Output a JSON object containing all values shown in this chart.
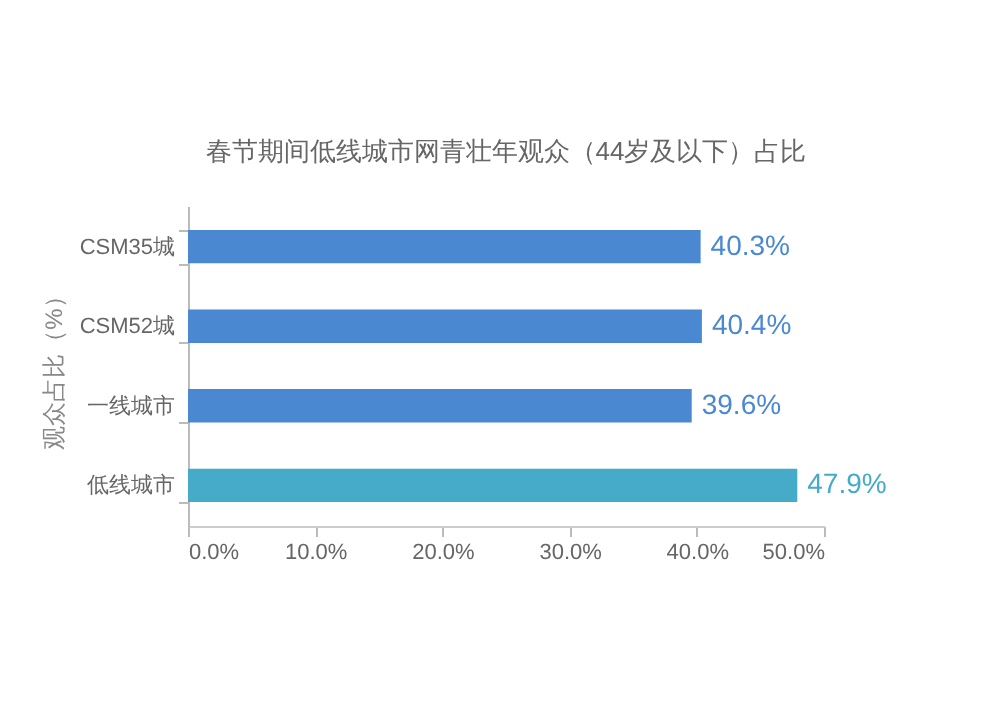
{
  "chart_data": {
    "type": "bar",
    "orientation": "horizontal",
    "title": "春节期间低线城市网青壮年观众（44岁及以下）占比",
    "ylabel": "观众占比（%）",
    "categories": [
      "CSM35城",
      "CSM52城",
      "一线城市",
      "低线城市"
    ],
    "values": [
      40.3,
      40.4,
      39.6,
      47.9
    ],
    "colors": [
      "#4a88d2",
      "#4a88d2",
      "#4a88d2",
      "#46abc8"
    ],
    "value_labels": [
      "40.3%",
      "40.4%",
      "39.6%",
      "47.9%"
    ],
    "xlim": [
      0,
      50
    ],
    "xticks": [
      {
        "value": 0,
        "label": "0.0%"
      },
      {
        "value": 10,
        "label": "10.0%"
      },
      {
        "value": 20,
        "label": "20.0%"
      },
      {
        "value": 30,
        "label": "30.0%"
      },
      {
        "value": 40,
        "label": "40.0%"
      },
      {
        "value": 50,
        "label": "50.0%"
      }
    ],
    "grid": false
  }
}
